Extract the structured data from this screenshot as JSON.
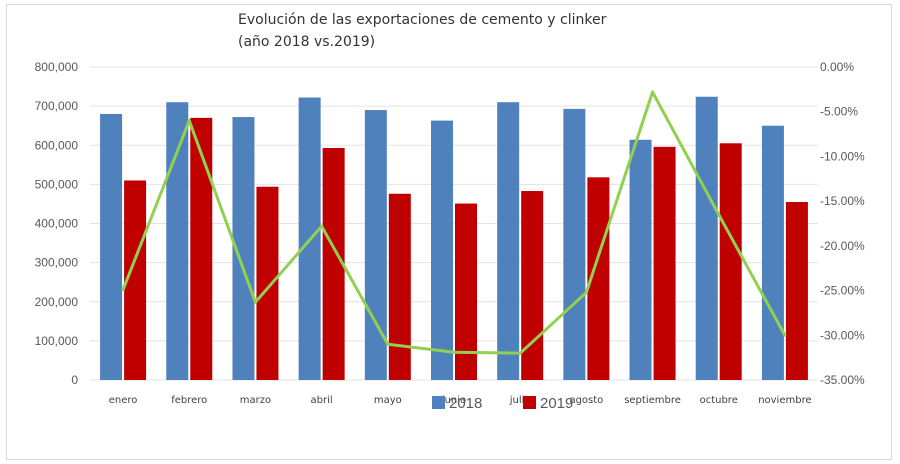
{
  "chart_data": {
    "type": "bar",
    "title_lines": [
      "Evolución de las exportaciones de cemento y clinker",
      "(año 2018 vs.2019)"
    ],
    "categories": [
      "enero",
      "febrero",
      "marzo",
      "abril",
      "mayo",
      "junio",
      "julio",
      "agosto",
      "septiembre",
      "octubre",
      "noviembre"
    ],
    "series": [
      {
        "name": "2018",
        "type": "bar",
        "axis": "left",
        "color": "#4f81bd",
        "values": [
          680000,
          710000,
          672000,
          722000,
          690000,
          663000,
          710000,
          693000,
          614000,
          724000,
          650000
        ]
      },
      {
        "name": "2019",
        "type": "bar",
        "axis": "left",
        "color": "#c00000",
        "values": [
          510000,
          670000,
          494000,
          593000,
          476000,
          451000,
          483000,
          518000,
          596000,
          605000,
          455000
        ]
      },
      {
        "name": "",
        "type": "line",
        "axis": "right",
        "color": "#92d050",
        "values": [
          -24.9,
          -6.0,
          -26.3,
          -17.8,
          -31.0,
          -31.9,
          -32.0,
          -25.2,
          -2.8,
          -16.5,
          -30.0
        ]
      }
    ],
    "y_left": {
      "min": 0,
      "max": 800000,
      "step": 100000,
      "tick_labels": [
        "0",
        "100,000",
        "200,000",
        "300,000",
        "400,000",
        "500,000",
        "600,000",
        "700,000",
        "800,000"
      ]
    },
    "y_right": {
      "min": -35,
      "max": 0,
      "step": 5,
      "tick_labels": [
        "-35.00%",
        "-30.00%",
        "-25.00%",
        "-20.00%",
        "-15.00%",
        "-10.00%",
        "-5.00%",
        "0.00%"
      ]
    },
    "grid": true,
    "legend": {
      "position": "bottom-overlapping",
      "items": [
        {
          "label": "2018",
          "color": "#4f81bd"
        },
        {
          "label": "2019",
          "color": "#c00000"
        }
      ]
    }
  }
}
